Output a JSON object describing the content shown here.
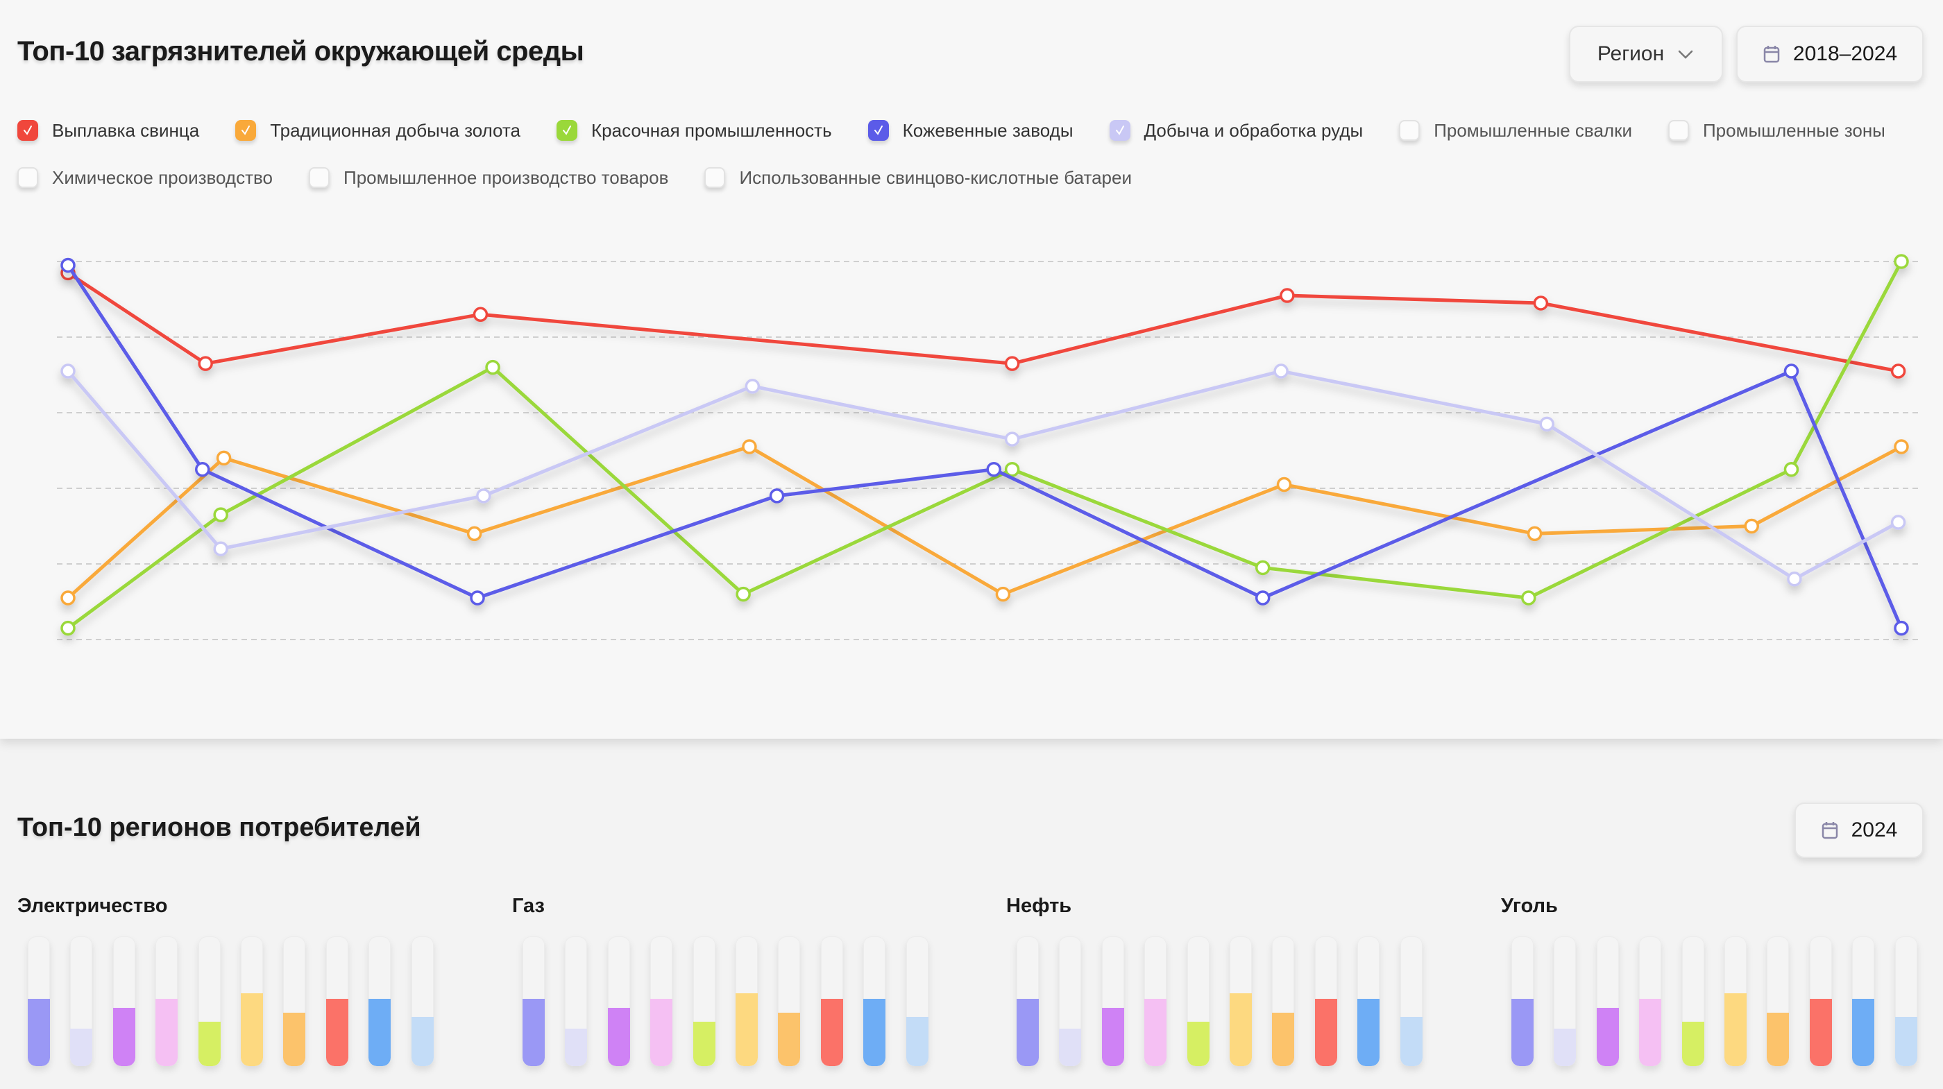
{
  "pollutants": {
    "title": "Топ-10 загрязнителей окружающей среды",
    "region_button": {
      "label": "Регион",
      "icon": "chevron-down-icon"
    },
    "date_button": {
      "label": "2018–2024",
      "icon": "calendar-icon"
    },
    "legend": [
      {
        "label": "Выплавка свинца",
        "checked": true,
        "color": "#f0473c"
      },
      {
        "label": "Традиционная добыча золота",
        "checked": true,
        "color": "#f9a93a"
      },
      {
        "label": "Красочная промышленность",
        "checked": true,
        "color": "#9ad83a"
      },
      {
        "label": "Кожевенные заводы",
        "checked": true,
        "color": "#5b5be8"
      },
      {
        "label": "Добыча и обработка руды",
        "checked": true,
        "color": "#c9c8f5"
      },
      {
        "label": "Промышленные свалки",
        "checked": false
      },
      {
        "label": "Промышленные зоны",
        "checked": false
      },
      {
        "label": "Химическое производство",
        "checked": false
      },
      {
        "label": "Промышленное производство товаров",
        "checked": false
      },
      {
        "label": "Использованные свинцово-кислотные батареи",
        "checked": false
      }
    ]
  },
  "chart_data": {
    "type": "line",
    "xlim": [
      2018,
      2024
    ],
    "ylim": [
      0,
      100
    ],
    "grid": true,
    "gridlines": 6,
    "series": [
      {
        "name": "Выплавка свинца",
        "color": "#f0473c",
        "points": [
          [
            2018.0,
            97
          ],
          [
            2018.45,
            73
          ],
          [
            2019.35,
            86
          ],
          [
            2021.09,
            73
          ],
          [
            2021.99,
            91
          ],
          [
            2022.82,
            89
          ],
          [
            2023.99,
            71
          ]
        ]
      },
      {
        "name": "Традиционная добыча золота",
        "color": "#f9a93a",
        "points": [
          [
            2018.0,
            11
          ],
          [
            2018.51,
            48
          ],
          [
            2019.33,
            28
          ],
          [
            2020.23,
            51
          ],
          [
            2021.06,
            12
          ],
          [
            2021.98,
            41
          ],
          [
            2022.8,
            28
          ],
          [
            2023.51,
            30
          ],
          [
            2024.0,
            51
          ]
        ]
      },
      {
        "name": "Красочная промышленность",
        "color": "#9ad83a",
        "points": [
          [
            2018.0,
            3
          ],
          [
            2018.5,
            33
          ],
          [
            2019.39,
            72
          ],
          [
            2020.21,
            12
          ],
          [
            2021.09,
            45
          ],
          [
            2021.91,
            19
          ],
          [
            2022.78,
            11
          ],
          [
            2023.64,
            45
          ],
          [
            2024.0,
            100
          ]
        ]
      },
      {
        "name": "Кожевенные заводы",
        "color": "#5b5be8",
        "points": [
          [
            2018.0,
            99
          ],
          [
            2018.44,
            45
          ],
          [
            2019.34,
            11
          ],
          [
            2020.32,
            38
          ],
          [
            2021.03,
            45
          ],
          [
            2021.91,
            11
          ],
          [
            2023.64,
            71
          ],
          [
            2024.0,
            3
          ]
        ]
      },
      {
        "name": "Добыча и обработка руды",
        "color": "#c9c8f5",
        "points": [
          [
            2018.0,
            71
          ],
          [
            2018.5,
            24
          ],
          [
            2019.36,
            38
          ],
          [
            2020.24,
            67
          ],
          [
            2021.09,
            53
          ],
          [
            2021.97,
            71
          ],
          [
            2022.84,
            57
          ],
          [
            2023.65,
            16
          ],
          [
            2023.99,
            31
          ]
        ]
      }
    ]
  },
  "consumers": {
    "title": "Топ-10 регионов потребителей",
    "date_button": {
      "label": "2024",
      "icon": "calendar-icon"
    },
    "bar_colors": [
      "#9a98f5",
      "#e0e0f7",
      "#cf82f5",
      "#f5c0f3",
      "#d6ef63",
      "#fdd980",
      "#fcc36b",
      "#fb7268",
      "#6eadf5",
      "#c3dcf7"
    ],
    "groups": [
      {
        "label": "Электричество",
        "levels": [
          0.52,
          0.29,
          0.45,
          0.52,
          0.34,
          0.56,
          0.41,
          0.52,
          0.52,
          0.38
        ]
      },
      {
        "label": "Газ",
        "levels": [
          0.52,
          0.29,
          0.45,
          0.52,
          0.34,
          0.56,
          0.41,
          0.52,
          0.52,
          0.38
        ]
      },
      {
        "label": "Нефть",
        "levels": [
          0.52,
          0.29,
          0.45,
          0.52,
          0.34,
          0.56,
          0.41,
          0.52,
          0.52,
          0.38
        ]
      },
      {
        "label": "Уголь",
        "levels": [
          0.52,
          0.29,
          0.45,
          0.52,
          0.34,
          0.56,
          0.41,
          0.52,
          0.52,
          0.38
        ]
      }
    ]
  }
}
